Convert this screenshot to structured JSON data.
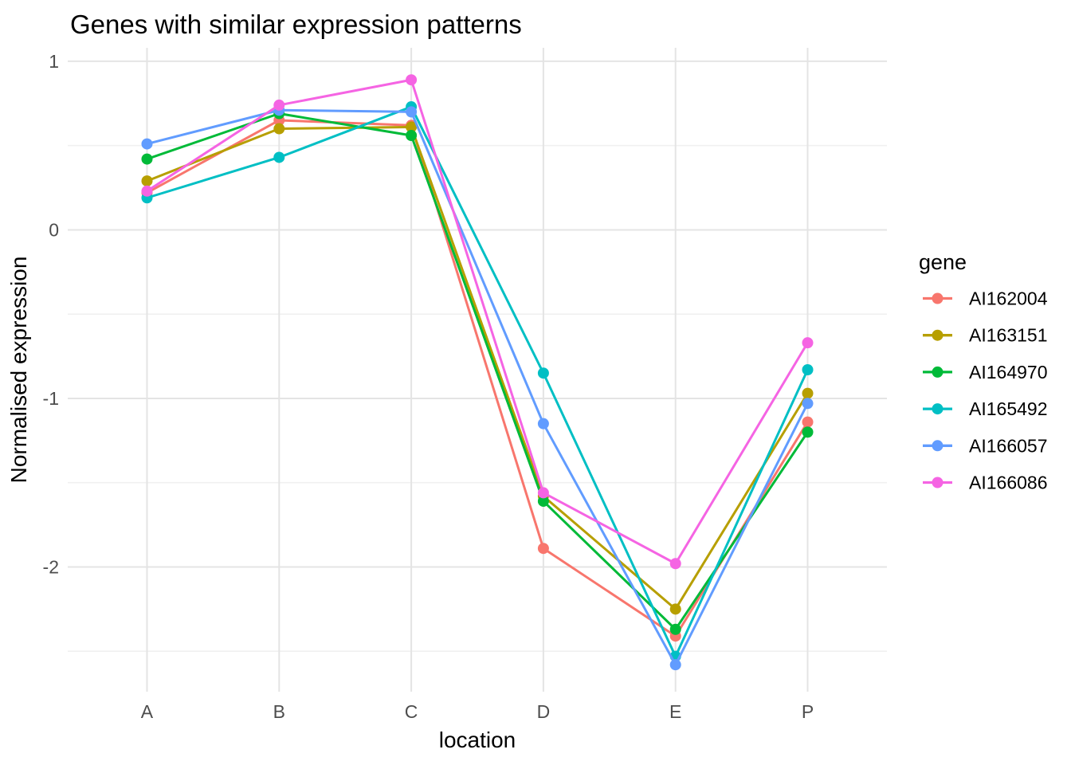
{
  "title": "Genes with similar expression patterns",
  "axes": {
    "x": {
      "label": "location",
      "tick_labels": [
        "A",
        "B",
        "C",
        "D",
        "E",
        "P"
      ]
    },
    "y": {
      "label": "Normalised expression",
      "tick_labels": [
        "1",
        "0",
        "-1",
        "-2"
      ],
      "tick_values": [
        1,
        0,
        -1,
        -2
      ],
      "minor_tick_values": [
        0.5,
        -0.5,
        -1.5,
        -2.5
      ]
    }
  },
  "legend": {
    "title": "gene",
    "entries": [
      "AI162004",
      "AI163151",
      "AI164970",
      "AI165492",
      "AI166057",
      "AI166086"
    ]
  },
  "chart_data": {
    "type": "line",
    "title": "Genes with similar expression patterns",
    "xlabel": "location",
    "ylabel": "Normalised expression",
    "categories": [
      "A",
      "B",
      "C",
      "D",
      "E",
      "P"
    ],
    "series": [
      {
        "name": "AI162004",
        "color": "#F8766D",
        "values": [
          0.22,
          0.65,
          0.62,
          -1.89,
          -2.41,
          -1.14
        ]
      },
      {
        "name": "AI163151",
        "color": "#B79F00",
        "values": [
          0.29,
          0.6,
          0.61,
          -1.58,
          -2.25,
          -0.97
        ]
      },
      {
        "name": "AI164970",
        "color": "#00BA38",
        "values": [
          0.42,
          0.69,
          0.56,
          -1.61,
          -2.37,
          -1.2
        ]
      },
      {
        "name": "AI165492",
        "color": "#00BFC4",
        "values": [
          0.19,
          0.43,
          0.73,
          -0.85,
          -2.53,
          -0.83
        ]
      },
      {
        "name": "AI166057",
        "color": "#619CFF",
        "values": [
          0.51,
          0.71,
          0.7,
          -1.15,
          -2.58,
          -1.03
        ]
      },
      {
        "name": "AI166086",
        "color": "#F564E3",
        "values": [
          0.23,
          0.74,
          0.89,
          -1.56,
          -1.98,
          -0.67
        ]
      }
    ],
    "ylim": [
      -2.74,
      1.08
    ],
    "grid": true,
    "legend_position": "right",
    "marker": "circle"
  },
  "colors": {
    "background": "#ffffff",
    "grid_major": "#e4e4e4",
    "grid_minor": "#f0f0f0",
    "tick_label": "#4d4d4d",
    "text": "#000000"
  }
}
